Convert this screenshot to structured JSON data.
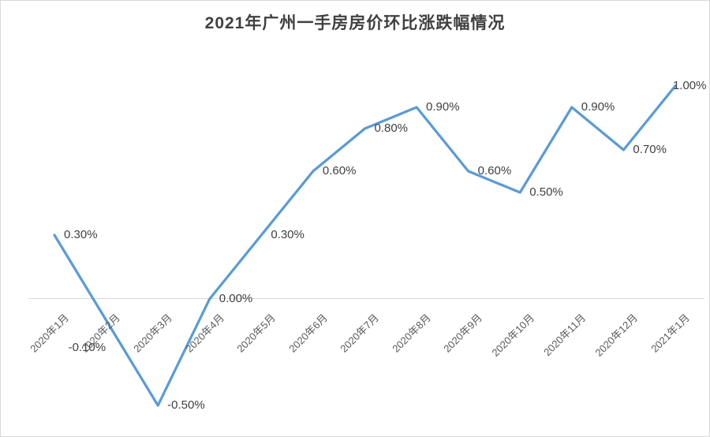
{
  "title": "2021年广州一手房房价环比涨跌幅情况",
  "chart_data": {
    "type": "line",
    "title": "2021年广州一手房房价环比涨跌幅情况",
    "categories": [
      "2020年1月",
      "2020年2月",
      "2020年3月",
      "2020年4月",
      "2020年5月",
      "2020年6月",
      "2020年7月",
      "2020年8月",
      "2020年9月",
      "2020年10月",
      "2020年11月",
      "2020年12月",
      "2021年1月"
    ],
    "values": [
      0.3,
      -0.1,
      -0.5,
      0.0,
      0.3,
      0.6,
      0.8,
      0.9,
      0.6,
      0.5,
      0.9,
      0.7,
      1.0
    ],
    "value_labels": [
      "0.30%",
      "-0.10%",
      "-0.50%",
      "0.00%",
      "0.30%",
      "0.60%",
      "0.80%",
      "0.90%",
      "0.60%",
      "0.50%",
      "0.90%",
      "0.70%",
      "1.00%"
    ],
    "unit": "percent",
    "xlabel": "",
    "ylabel": "",
    "ylim": [
      -0.5,
      1.0
    ],
    "legend": "none",
    "grid": "zero-axis-line-only",
    "x_tick_rotation": -45,
    "line_color": "#5b9bd5",
    "axis_line_color": "#d9d9d9",
    "data_label_color": "#404040",
    "tick_label_color": "#595959",
    "label_offsets": {
      "1": [
        -60,
        35
      ],
      "12": [
        -15,
        0
      ]
    }
  }
}
